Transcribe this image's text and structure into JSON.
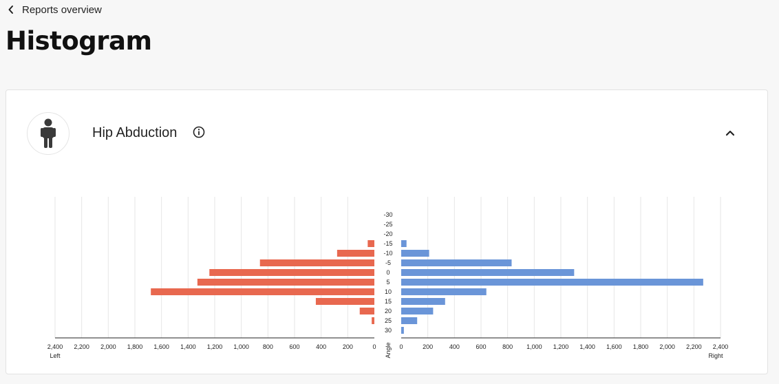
{
  "nav": {
    "back_label": "Reports overview",
    "back_icon": "chevron-left-icon"
  },
  "page": {
    "title": "Histogram"
  },
  "card": {
    "title": "Hip Abduction",
    "avatar_icon": "person-icon",
    "info_icon": "info-icon",
    "collapse_icon": "chevron-up-icon"
  },
  "chart_data": {
    "type": "bar",
    "orientation": "horizontal-butterfly",
    "category_label": "Angle",
    "categories": [
      -30,
      -25,
      -20,
      -15,
      -10,
      -5,
      0,
      5,
      10,
      15,
      20,
      25,
      30
    ],
    "series": [
      {
        "name": "Left",
        "color": "#e8684f",
        "side": "left",
        "values": [
          0,
          0,
          0,
          50,
          280,
          860,
          1240,
          1330,
          1680,
          440,
          110,
          20,
          0
        ]
      },
      {
        "name": "Right",
        "color": "#6a95d8",
        "side": "right",
        "values": [
          0,
          0,
          0,
          40,
          210,
          830,
          1300,
          2270,
          640,
          330,
          240,
          120,
          20
        ]
      }
    ],
    "xlim": [
      0,
      2400
    ],
    "xticks": [
      "0",
      "200",
      "400",
      "600",
      "800",
      "1,000",
      "1,200",
      "1,400",
      "1,600",
      "1,800",
      "2,000",
      "2,200",
      "2,400"
    ],
    "grid": true
  }
}
